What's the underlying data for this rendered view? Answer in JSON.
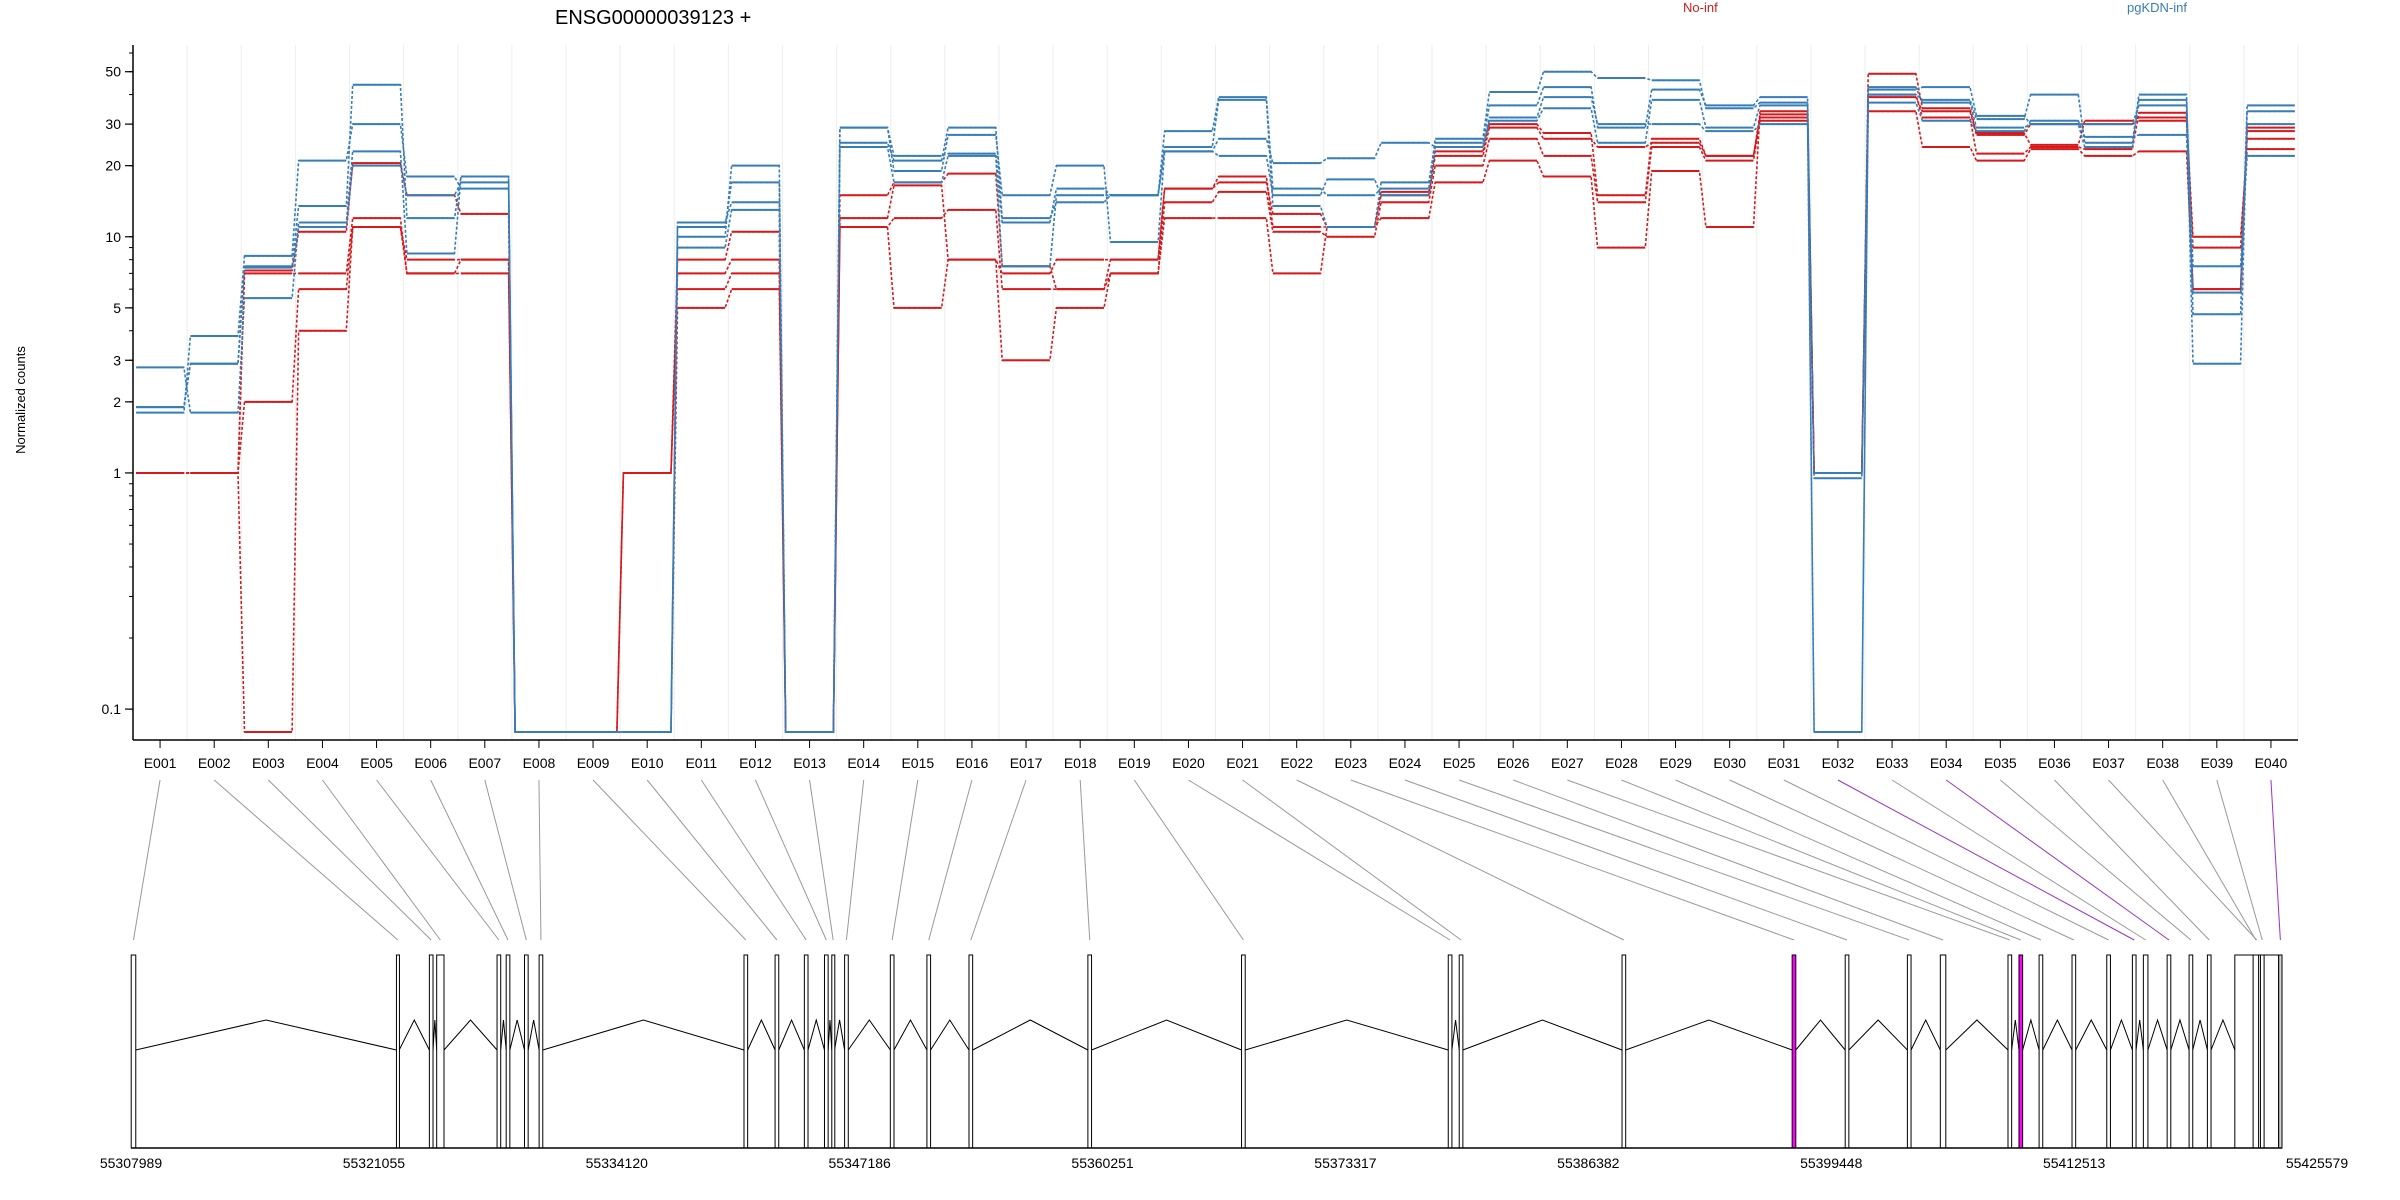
{
  "chart_data": {
    "type": "line",
    "title": "ENSG00000039123 +",
    "ylabel": "Normalized counts",
    "xlabel": "",
    "y_scale": "log",
    "ylim": [
      0.08,
      60
    ],
    "y_ticks": [
      0.1,
      1,
      2,
      3,
      5,
      10,
      20,
      30,
      50
    ],
    "grid": "vertical light lines at exon boundaries",
    "legend": [
      {
        "name": "No-inf",
        "color": "#d7191c",
        "placement": "top-center"
      },
      {
        "name": "pgKDN-inf",
        "color": "#377eb8",
        "placement": "top-right"
      }
    ],
    "categories": [
      "E001",
      "E002",
      "E003",
      "E004",
      "E005",
      "E006",
      "E007",
      "E008",
      "E009",
      "E010",
      "E011",
      "E012",
      "E013",
      "E014",
      "E015",
      "E016",
      "E017",
      "E018",
      "E019",
      "E020",
      "E021",
      "E022",
      "E023",
      "E024",
      "E025",
      "E026",
      "E027",
      "E028",
      "E029",
      "E030",
      "E031",
      "E032",
      "E033",
      "E034",
      "E035",
      "E036",
      "E037",
      "E038",
      "E039",
      "E040"
    ],
    "series": [
      {
        "group": "No-inf",
        "color": "#d7191c",
        "values": [
          1,
          1,
          7.2,
          10.5,
          20.5,
          15,
          12.5,
          0.08,
          0.08,
          1,
          8,
          10.5,
          0.08,
          15,
          17,
          18.5,
          7.5,
          6,
          8,
          16,
          17,
          12.5,
          11,
          15.5,
          23,
          30,
          27.5,
          15,
          26,
          22,
          32,
          1,
          49,
          35,
          27.5,
          24.5,
          31,
          32,
          10,
          23.5
        ]
      },
      {
        "group": "No-inf",
        "color": "#d7191c",
        "values": [
          1,
          1,
          7,
          7,
          12,
          7,
          8,
          0.08,
          0.08,
          1,
          7,
          8,
          0.08,
          12,
          16.5,
          8,
          7,
          8,
          8,
          16,
          18,
          11,
          11,
          15,
          22,
          29,
          26,
          24,
          25,
          22,
          33,
          1,
          39,
          34,
          27,
          30,
          30,
          31,
          9,
          26
        ]
      },
      {
        "group": "No-inf",
        "color": "#d7191c",
        "values": [
          1,
          1,
          2,
          6,
          11,
          8,
          8,
          0.08,
          0.08,
          1,
          6,
          7,
          0.08,
          11,
          12,
          13,
          6,
          6,
          7,
          14,
          15.5,
          10.5,
          10,
          14,
          20,
          26,
          22,
          14,
          24,
          21,
          31,
          1,
          40,
          32,
          22.5,
          24,
          23.5,
          33.5,
          6,
          29
        ]
      },
      {
        "group": "No-inf",
        "color": "#d7191c",
        "values": [
          1,
          1,
          0.08,
          4,
          11,
          7,
          7,
          0.08,
          0.08,
          0.08,
          5,
          6,
          0.08,
          11,
          5,
          8,
          3,
          5,
          7,
          12,
          12,
          7,
          11,
          12,
          17,
          21,
          18,
          9,
          19,
          11,
          34,
          1,
          34,
          24,
          21,
          23.5,
          22,
          23,
          6,
          28
        ]
      },
      {
        "group": "pgKDN-inf",
        "color": "#377eb8",
        "values": [
          1.9,
          2.9,
          7.4,
          11,
          20,
          15,
          17,
          0.08,
          0.08,
          0.08,
          11.5,
          14,
          0.08,
          24,
          17,
          22,
          7.5,
          15,
          15,
          24,
          38,
          13.5,
          11,
          17,
          25,
          36,
          43,
          29,
          42,
          36,
          39,
          1,
          40,
          38,
          31.5,
          40,
          25,
          40,
          4.7,
          36
        ]
      },
      {
        "group": "pgKDN-inf",
        "color": "#377eb8",
        "values": [
          1.9,
          2.9,
          7.5,
          13.5,
          44,
          12,
          18,
          0.08,
          0.08,
          0.08,
          11,
          17,
          0.08,
          25,
          21,
          29,
          12,
          14,
          15,
          28,
          39,
          16,
          15,
          16,
          26,
          41,
          50,
          47,
          46,
          35,
          37,
          0.95,
          42,
          43,
          32.5,
          30,
          30,
          36,
          2.9,
          34
        ]
      },
      {
        "group": "pgKDN-inf",
        "color": "#377eb8",
        "values": [
          1.8,
          3.8,
          8.3,
          21,
          30,
          18,
          16,
          0.08,
          0.08,
          0.08,
          10,
          20,
          0.08,
          29,
          19,
          27,
          15,
          20,
          9.5,
          23,
          26,
          20.5,
          21.5,
          25,
          24,
          31,
          35,
          25,
          38,
          29,
          36,
          0.08,
          43,
          37,
          29,
          30,
          24,
          38,
          7.5,
          22
        ]
      },
      {
        "group": "pgKDN-inf",
        "color": "#377eb8",
        "values": [
          2.8,
          1.8,
          5.5,
          11.5,
          23,
          8.5,
          18,
          0.08,
          0.08,
          0.08,
          9,
          13,
          0.08,
          29,
          22,
          22.5,
          11.5,
          16,
          15,
          23,
          22,
          15,
          17.5,
          15,
          24,
          32,
          39,
          30,
          30,
          28,
          30,
          0.08,
          37,
          31,
          28,
          31,
          26.5,
          27,
          5.8,
          30
        ]
      }
    ],
    "genomic_axis": {
      "tick_labels": [
        "55307989",
        "55321055",
        "55334120",
        "55347186",
        "55360251",
        "55373317",
        "55386382",
        "55399448",
        "55412513",
        "55425579"
      ],
      "range": [
        55307989,
        55425579
      ]
    },
    "gene_model": {
      "exon_fill": "#ffffff",
      "exon_stroke": "#000000",
      "highlight_fill": "#ff00ff",
      "highlight_exons": [
        "E032",
        "E034",
        "E040"
      ],
      "utr_fill": "#d3d3d3",
      "connector_color": "#999999",
      "highlight_connector_color": "#9932cc"
    }
  }
}
